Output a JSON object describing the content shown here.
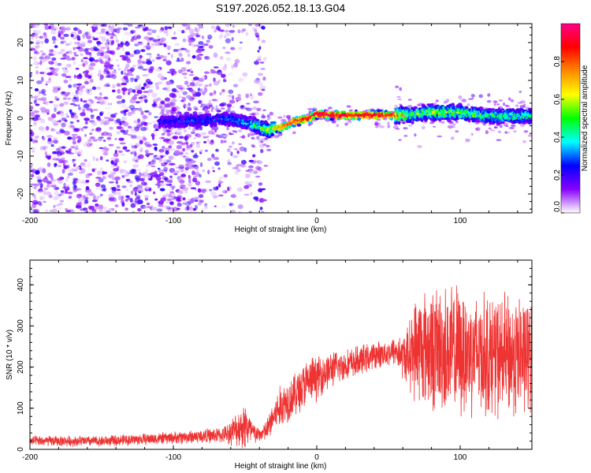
{
  "chart_data": [
    {
      "type": "heatmap",
      "title": "S197.2026.052.18.13.G04",
      "xlabel": "Height of straight line (km)",
      "ylabel": "Frequency (Hz)",
      "xlim": [
        -200,
        150
      ],
      "ylim": [
        -25,
        25
      ],
      "x_ticks": [
        -200,
        -100,
        0,
        100
      ],
      "x_tick_labels": [
        "-200",
        "-100",
        "0",
        "100"
      ],
      "y_ticks": [
        -20,
        -10,
        0,
        10,
        20
      ],
      "y_tick_labels": [
        "-20",
        "-10",
        "0",
        "10",
        "20"
      ],
      "ridge": {
        "name": "Dominant frequency ridge",
        "x": [
          -110,
          -60,
          -45,
          -35,
          -25,
          -15,
          -5,
          0,
          10,
          30,
          55,
          65,
          80,
          100,
          120,
          150
        ],
        "y": [
          -1.0,
          -0.2,
          -1.5,
          -3.0,
          -2.5,
          -0.8,
          0.0,
          1.2,
          0.8,
          0.8,
          0.8,
          0.9,
          1.5,
          1.6,
          0.6,
          0.5
        ],
        "amplitude": [
          0.25,
          0.3,
          0.4,
          0.65,
          0.8,
          0.9,
          0.95,
          0.98,
          1.0,
          1.0,
          0.9,
          0.55,
          0.6,
          0.55,
          0.5,
          0.45
        ]
      },
      "noise_region": {
        "x_range": [
          -200,
          -35
        ],
        "y_range": [
          -25,
          25
        ],
        "amplitude_range": [
          0.0,
          0.2
        ]
      },
      "colorbar": {
        "label": "Normalized spectral amplitude",
        "range": [
          0.0,
          1.0
        ],
        "ticks": [
          0.0,
          0.2,
          0.4,
          0.6,
          0.8
        ],
        "tick_labels": [
          "0.0",
          "0.2",
          "0.4",
          "0.6",
          "0.8"
        ],
        "colors": [
          "#ffffff",
          "#8800ff",
          "#0000ff",
          "#00ffff",
          "#00ff00",
          "#ffff00",
          "#ff8800",
          "#ff0000",
          "#ff0088"
        ]
      }
    },
    {
      "type": "line",
      "xlabel": "Height of straight line (km)",
      "ylabel": "SNR (10 * v/v)",
      "xlim": [
        -200,
        150
      ],
      "ylim": [
        0,
        460
      ],
      "x_ticks": [
        -200,
        -100,
        0,
        100
      ],
      "x_tick_labels": [
        "-200",
        "-100",
        "0",
        "100"
      ],
      "y_ticks": [
        0,
        100,
        200,
        300,
        400
      ],
      "y_tick_labels": [
        "0",
        "100",
        "200",
        "300",
        "400"
      ],
      "series": [
        {
          "name": "SNR",
          "color": "#ee3333",
          "x": [
            -200,
            -150,
            -100,
            -65,
            -55,
            -50,
            -45,
            -40,
            -35,
            -30,
            -25,
            -20,
            -15,
            -10,
            -5,
            0,
            10,
            20,
            30,
            40,
            50,
            55,
            60,
            65,
            70,
            80,
            90,
            100,
            110,
            120,
            130,
            140,
            150
          ],
          "mean": [
            20,
            20,
            28,
            35,
            50,
            60,
            40,
            35,
            45,
            80,
            105,
            120,
            135,
            150,
            165,
            175,
            195,
            205,
            215,
            228,
            235,
            240,
            225,
            230,
            250,
            245,
            240,
            235,
            238,
            230,
            225,
            228,
            225
          ],
          "spread": [
            12,
            12,
            14,
            18,
            40,
            60,
            30,
            15,
            25,
            40,
            50,
            50,
            50,
            55,
            55,
            50,
            40,
            35,
            35,
            30,
            30,
            35,
            50,
            80,
            130,
            140,
            150,
            150,
            140,
            140,
            140,
            140,
            130
          ]
        }
      ]
    }
  ]
}
